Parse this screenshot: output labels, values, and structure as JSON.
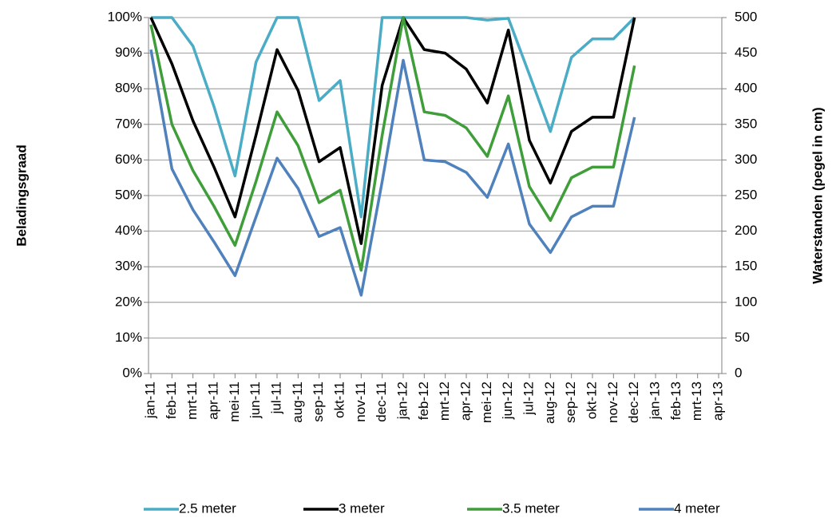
{
  "chart_data": {
    "type": "line",
    "ylabel": "Beladingsgraad",
    "y2label": "Waterstanden (pegel in cm)",
    "categories": [
      "jan-11",
      "feb-11",
      "mrt-11",
      "apr-11",
      "mei-11",
      "jun-11",
      "jul-11",
      "aug-11",
      "sep-11",
      "okt-11",
      "nov-11",
      "dec-11",
      "jan-12",
      "feb-12",
      "mrt-12",
      "apr-12",
      "mei-12",
      "jun-12",
      "jul-12",
      "aug-12",
      "sep-12",
      "okt-12",
      "nov-12",
      "dec-12",
      "jan-13",
      "feb-13",
      "mrt-13",
      "apr-13"
    ],
    "series": [
      {
        "name": "2.5 meter",
        "color": "#4bacc6",
        "values": [
          100,
          100,
          92,
          75,
          55.5,
          87.5,
          100,
          100,
          76.7,
          82.3,
          44,
          100,
          100,
          100,
          100,
          100,
          99.3,
          99.8,
          84,
          68,
          88.8,
          94,
          94,
          100,
          null,
          null,
          null,
          null
        ]
      },
      {
        "name": "3 meter",
        "color": "#000000",
        "values": [
          100,
          87,
          71,
          58,
          44,
          67,
          91,
          79.5,
          59.5,
          63.5,
          36.5,
          81,
          100,
          91,
          90,
          85.5,
          76,
          96.5,
          65.5,
          53.5,
          68,
          72,
          72,
          100,
          null,
          null,
          null,
          null
        ]
      },
      {
        "name": "3.5 meter",
        "color": "#3f9e3a",
        "values": [
          98,
          70,
          57,
          47,
          36,
          54,
          73.5,
          64,
          48,
          51.5,
          29,
          67,
          100,
          73.5,
          72.5,
          69,
          61,
          78,
          52.5,
          43,
          55,
          58,
          58,
          86.5,
          null,
          null,
          null,
          null
        ]
      },
      {
        "name": "4 meter",
        "color": "#4f81bd",
        "values": [
          91,
          57.5,
          46,
          37,
          27.5,
          44,
          60.5,
          52,
          38.5,
          41,
          22,
          54,
          88,
          60,
          59.5,
          56.5,
          49.5,
          64.5,
          42,
          34,
          44,
          47,
          47,
          72,
          null,
          null,
          null,
          null
        ]
      }
    ],
    "ylim": [
      0,
      100
    ],
    "yticks": [
      {
        "value": 0,
        "label": "0%"
      },
      {
        "value": 10,
        "label": "10%"
      },
      {
        "value": 20,
        "label": "20%"
      },
      {
        "value": 30,
        "label": "30%"
      },
      {
        "value": 40,
        "label": "40%"
      },
      {
        "value": 50,
        "label": "50%"
      },
      {
        "value": 60,
        "label": "60%"
      },
      {
        "value": 70,
        "label": "70%"
      },
      {
        "value": 80,
        "label": "80%"
      },
      {
        "value": 90,
        "label": "90%"
      },
      {
        "value": 100,
        "label": "100%"
      }
    ],
    "y2lim": [
      0,
      500
    ],
    "y2ticks": [
      0,
      50,
      100,
      150,
      200,
      250,
      300,
      350,
      400,
      450,
      500
    ],
    "grid": true,
    "legend": "bottom"
  }
}
